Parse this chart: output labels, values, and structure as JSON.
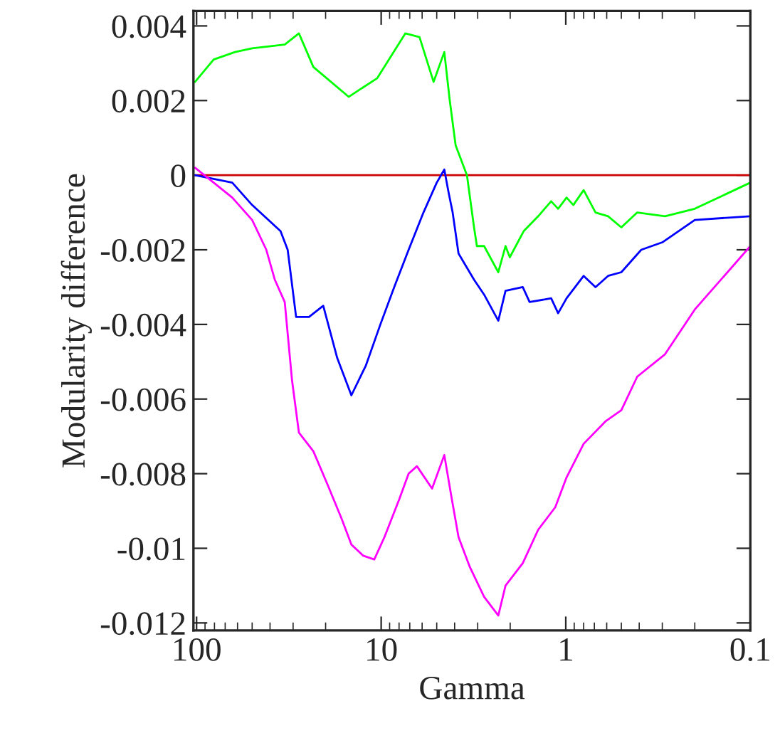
{
  "chart_data": {
    "type": "line",
    "xlabel": "Gamma",
    "ylabel": "Modularity difference",
    "log": "x",
    "xlim": [
      104,
      0.1
    ],
    "xticks": [
      100,
      10,
      1,
      0.1
    ],
    "ylim": [
      -0.0122,
      0.0044
    ],
    "yticks": [
      0.004,
      0.002,
      0,
      -0.002,
      -0.004,
      -0.006,
      -0.008,
      -0.01,
      -0.012
    ],
    "grid": false,
    "legend": false,
    "marker": "none",
    "line_style": "solid",
    "ref_lines": [
      {
        "axis": "y",
        "value": 0,
        "color": "#cc0000"
      }
    ],
    "series": [
      {
        "color": "#00ff00",
        "x": [
          102,
          80.8,
          61.9,
          50.0,
          33.3,
          27.9,
          23.3,
          15.0,
          10.5,
          7.4,
          6.2,
          5.2,
          4.55,
          4.25,
          3.95,
          3.43,
          3.14,
          3.03,
          2.77,
          2.32,
          2.12,
          2.01,
          1.69,
          1.41,
          1.2,
          1.1,
          0.99,
          0.91,
          0.8,
          0.69,
          0.59,
          0.5,
          0.41,
          0.29,
          0.2,
          0.1
        ],
        "values": [
          0.0025,
          0.0031,
          0.0033,
          0.0034,
          0.0035,
          0.0038,
          0.0029,
          0.0021,
          0.0026,
          0.0038,
          0.0037,
          0.0025,
          0.0033,
          0.002,
          0.0008,
          0.0,
          -0.0014,
          -0.0019,
          -0.0019,
          -0.0026,
          -0.0019,
          -0.0022,
          -0.0015,
          -0.0011,
          -0.0007,
          -0.0009,
          -0.0006,
          -0.0008,
          -0.0004,
          -0.001,
          -0.0011,
          -0.0014,
          -0.001,
          -0.0011,
          -0.0009,
          -0.0002
        ]
      },
      {
        "color": "#0000ff",
        "x": [
          102,
          64.1,
          50.0,
          35.1,
          32.1,
          28.9,
          24.6,
          20.6,
          17.3,
          14.5,
          12.1,
          10.1,
          8.5,
          7.1,
          5.9,
          5.0,
          4.55,
          4.3,
          4.1,
          3.81,
          3.14,
          2.77,
          2.32,
          2.12,
          1.71,
          1.57,
          1.2,
          1.1,
          0.99,
          0.8,
          0.69,
          0.59,
          0.5,
          0.39,
          0.3,
          0.2,
          0.1
        ],
        "values": [
          0.0,
          -0.0002,
          -0.0008,
          -0.0015,
          -0.002,
          -0.0038,
          -0.0038,
          -0.0035,
          -0.0049,
          -0.0059,
          -0.0051,
          -0.004,
          -0.003,
          -0.002,
          -0.001,
          -0.0002,
          0.00015,
          -0.0005,
          -0.001,
          -0.0021,
          -0.0028,
          -0.0032,
          -0.0039,
          -0.0031,
          -0.003,
          -0.0034,
          -0.0033,
          -0.0037,
          -0.0033,
          -0.0027,
          -0.003,
          -0.0027,
          -0.0026,
          -0.002,
          -0.0018,
          -0.0012,
          -0.0011
        ]
      },
      {
        "color": "#ff00ff",
        "x": [
          102,
          80.8,
          64.1,
          50.0,
          41.9,
          37.7,
          33.3,
          30.4,
          27.9,
          23.3,
          19.5,
          16.4,
          14.5,
          12.5,
          10.9,
          9.6,
          8.0,
          7.1,
          6.4,
          5.3,
          4.55,
          4.17,
          3.81,
          3.31,
          2.77,
          2.32,
          2.12,
          1.71,
          1.41,
          1.14,
          0.99,
          0.8,
          0.61,
          0.5,
          0.41,
          0.29,
          0.2,
          0.1
        ],
        "values": [
          0.0002,
          -0.0002,
          -0.0006,
          -0.0012,
          -0.002,
          -0.0028,
          -0.0034,
          -0.0055,
          -0.0069,
          -0.0074,
          -0.0083,
          -0.0092,
          -0.0099,
          -0.0102,
          -0.0103,
          -0.0097,
          -0.0087,
          -0.008,
          -0.0078,
          -0.0084,
          -0.0075,
          -0.0086,
          -0.0097,
          -0.0105,
          -0.0113,
          -0.0118,
          -0.011,
          -0.0104,
          -0.0095,
          -0.0089,
          -0.0081,
          -0.0072,
          -0.0066,
          -0.0063,
          -0.0054,
          -0.0048,
          -0.0036,
          -0.0019
        ]
      }
    ]
  }
}
